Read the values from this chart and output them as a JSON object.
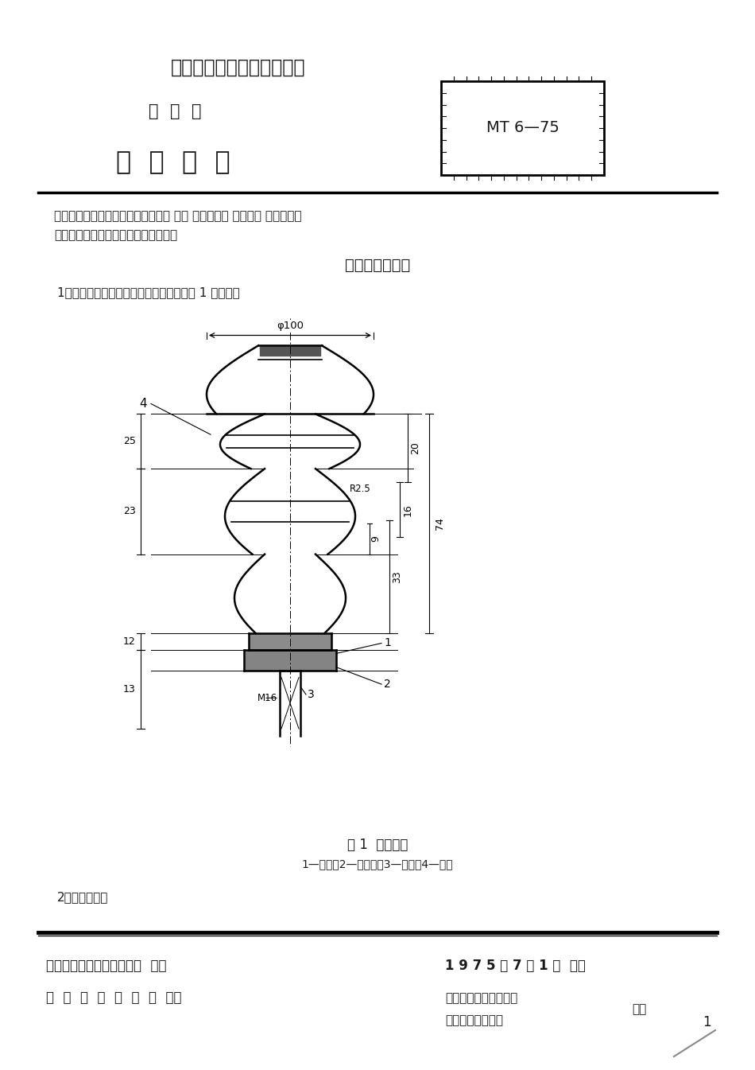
{
  "title1": "中华人民共和国煤炭工业部",
  "title2": "部  标  准",
  "title3": "瓷  吊  线  器",
  "box_label": "MT 6—75",
  "intro_text1": "本标准适用于矿山井下和地面窄轨铁 路运 输架线式电 机车牵引 网路接触线",
  "intro_text2": "（电车线）的绝缘和悬挂用瓷吊线器。",
  "section1": "一、型号与尺寸",
  "item1": "1．瓷吊线器的型号与尺寸应符合本标准图 1 的规定。",
  "fig_caption": "图 1  瓷吊线器",
  "fig_subcaption": "1—胶垫；2—大垫圈；3—螺杆；4—瓷件",
  "item2": "2．型号示例：",
  "footer_left1": "中华人民共和国煤炭工业部  发布",
  "footer_right1": "1 9 7 5 年 7 月 1 日  试行",
  "footer_left2": "煤  炭  规  划  设  计  院  提出",
  "footer_right2a": "辽宁省煤矿设计研究院",
  "footer_right2b": "南票矿务局电瓷厂",
  "footer_right2c": "起草",
  "page_num": "1",
  "bg_color": "#ffffff",
  "text_color": "#1a1a1a"
}
